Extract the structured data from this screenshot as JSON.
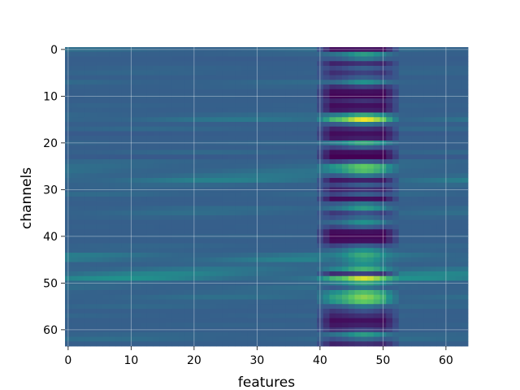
{
  "chart_data": {
    "type": "heatmap",
    "title": "",
    "xlabel": "features",
    "ylabel": "channels",
    "xlim": [
      -0.5,
      63.5
    ],
    "ylim": [
      63.5,
      -0.5
    ],
    "xticks": [
      0,
      10,
      20,
      30,
      40,
      50,
      60
    ],
    "yticks": [
      0,
      10,
      20,
      30,
      40,
      50,
      60
    ],
    "grid": true,
    "colormap": "viridis",
    "value_range": [
      0,
      1
    ],
    "rows": 64,
    "cols": 64,
    "base_level": 0.3,
    "row_offsets": [
      0.06,
      0.02,
      -0.01,
      0.0,
      0.02,
      0.03,
      0.0,
      0.05,
      0.02,
      0.0,
      0.01,
      0.0,
      0.02,
      0.01,
      0.05,
      0.1,
      0.0,
      0.04,
      -0.02,
      0.0,
      0.03,
      0.0,
      0.04,
      -0.02,
      0.04,
      0.06,
      0.08,
      0.1,
      0.14,
      0.04,
      0.02,
      0.05,
      0.01,
      0.0,
      0.05,
      0.06,
      0.02,
      0.0,
      0.01,
      0.0,
      0.02,
      0.0,
      0.03,
      0.02,
      0.12,
      0.14,
      0.04,
      0.1,
      0.16,
      0.2,
      0.04,
      0.06,
      0.04,
      0.07,
      0.02,
      0.04,
      0.0,
      0.03,
      0.0,
      0.02,
      0.0,
      0.03,
      0.06,
      0.0
    ],
    "active_band": {
      "feature_range": [
        40,
        52
      ],
      "peak_feature": 47,
      "row_values": [
        0.05,
        0.55,
        0.4,
        0.15,
        0.3,
        0.2,
        0.3,
        0.5,
        0.2,
        0.05,
        0.02,
        0.15,
        0.05,
        0.1,
        0.6,
        0.98,
        0.4,
        0.15,
        0.05,
        0.1,
        0.6,
        0.3,
        0.05,
        0.0,
        0.3,
        0.75,
        0.7,
        0.4,
        0.1,
        0.3,
        0.15,
        0.3,
        0.05,
        0.4,
        0.55,
        0.25,
        0.35,
        0.5,
        0.3,
        0.05,
        0.02,
        0.05,
        0.3,
        0.5,
        0.62,
        0.55,
        0.5,
        0.65,
        0.2,
        0.95,
        0.6,
        0.4,
        0.7,
        0.82,
        0.75,
        0.4,
        0.25,
        0.15,
        0.05,
        0.1,
        0.2,
        0.55,
        0.35,
        0.15
      ]
    }
  }
}
